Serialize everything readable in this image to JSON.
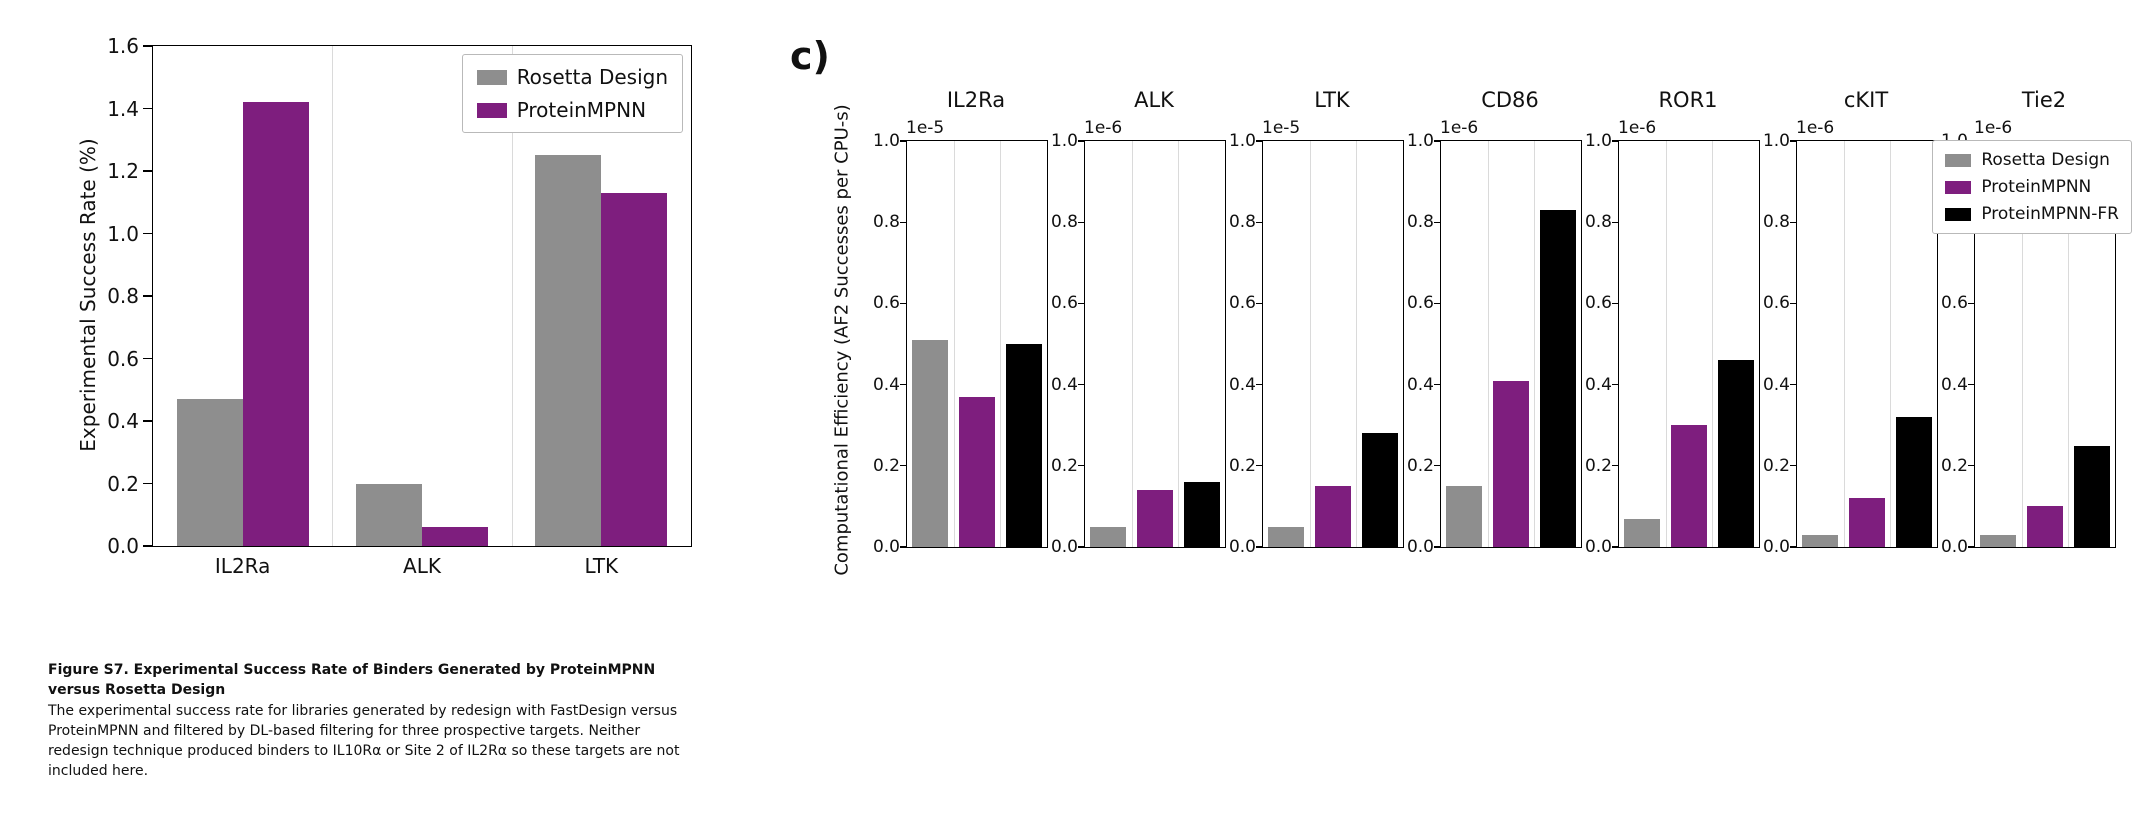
{
  "page": {
    "background": "#ffffff"
  },
  "colors": {
    "rosetta_design": "#8e8e8e",
    "proteinmpnn": "#7e1e7e",
    "proteinmpnn_fr": "#000000",
    "gridline": "#dadada",
    "axis": "#000000"
  },
  "chart_data": [
    {
      "id": "experimental-success-rate",
      "type": "bar",
      "title": "",
      "xlabel": "",
      "ylabel": "Experimental Success Rate (%)",
      "ylim": [
        0,
        1.6
      ],
      "yticks": [
        0.0,
        0.2,
        0.4,
        0.6,
        0.8,
        1.0,
        1.2,
        1.4,
        1.6
      ],
      "categories": [
        "IL2Ra",
        "ALK",
        "LTK"
      ],
      "series": [
        {
          "name": "Rosetta Design",
          "color": "#8e8e8e",
          "values": [
            0.47,
            0.2,
            1.25
          ]
        },
        {
          "name": "ProteinMPNN",
          "color": "#7e1e7e",
          "values": [
            1.42,
            0.06,
            1.13
          ]
        }
      ],
      "legend_position": "upper right",
      "grid": "faint vertical separators between category groups"
    },
    {
      "id": "computational-efficiency",
      "type": "bar",
      "panel_label": "c)",
      "ylabel": "Computational Efficiency (AF2 Successes per CPU-s)",
      "ylim": [
        0,
        1.0
      ],
      "yticks": [
        0.0,
        0.2,
        0.4,
        0.6,
        0.8,
        1.0
      ],
      "series_names": [
        "Rosetta Design",
        "ProteinMPNN",
        "ProteinMPNN-FR"
      ],
      "series_colors": [
        "#8e8e8e",
        "#7e1e7e",
        "#000000"
      ],
      "legend_position": "upper right of last subplot",
      "grid": "faint vertical separators between bars",
      "subplots": [
        {
          "title": "IL2Ra",
          "scale_label": "1e-5",
          "values": [
            0.51,
            0.37,
            0.5
          ]
        },
        {
          "title": "ALK",
          "scale_label": "1e-6",
          "values": [
            0.05,
            0.14,
            0.16
          ]
        },
        {
          "title": "LTK",
          "scale_label": "1e-5",
          "values": [
            0.05,
            0.15,
            0.28
          ]
        },
        {
          "title": "CD86",
          "scale_label": "1e-6",
          "values": [
            0.15,
            0.41,
            0.83
          ]
        },
        {
          "title": "ROR1",
          "scale_label": "1e-6",
          "values": [
            0.07,
            0.3,
            0.46
          ]
        },
        {
          "title": "cKIT",
          "scale_label": "1e-6",
          "values": [
            0.03,
            0.12,
            0.32
          ]
        },
        {
          "title": "Tie2",
          "scale_label": "1e-6",
          "values": [
            0.03,
            0.1,
            0.25
          ]
        }
      ]
    }
  ],
  "caption": {
    "title": "Figure S7. Experimental Success Rate of Binders Generated by ProteinMPNN versus Rosetta Design",
    "body": "The experimental success rate for libraries generated by redesign with FastDesign versus ProteinMPNN and filtered by DL-based filtering for three prospective targets. Neither redesign technique produced binders to IL10Rα or Site 2 of IL2Rα so these targets are not included here."
  }
}
